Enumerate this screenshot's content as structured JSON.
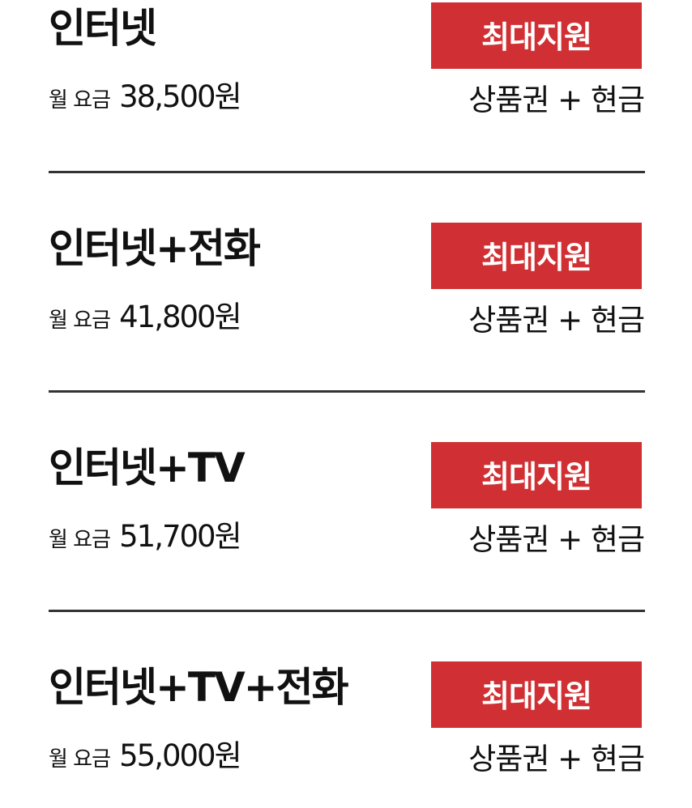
{
  "plans": [
    {
      "name": "인터넷",
      "price_label": "월 요금",
      "price": "38,500원",
      "badge": "최대지원",
      "benefit": "상품권 + 현금"
    },
    {
      "name": "인터넷+전화",
      "price_label": "월 요금",
      "price": "41,800원",
      "badge": "최대지원",
      "benefit": "상품권 + 현금"
    },
    {
      "name": "인터넷+TV",
      "price_label": "월 요금",
      "price": "51,700원",
      "badge": "최대지원",
      "benefit": "상품권 + 현금"
    },
    {
      "name": "인터넷+TV+전화",
      "price_label": "월 요금",
      "price": "55,000원",
      "badge": "최대지원",
      "benefit": "상품권 + 현금"
    }
  ],
  "colors": {
    "badge_background": "#d03033",
    "badge_text": "#ffffff",
    "divider": "#333333",
    "text": "#111111"
  }
}
